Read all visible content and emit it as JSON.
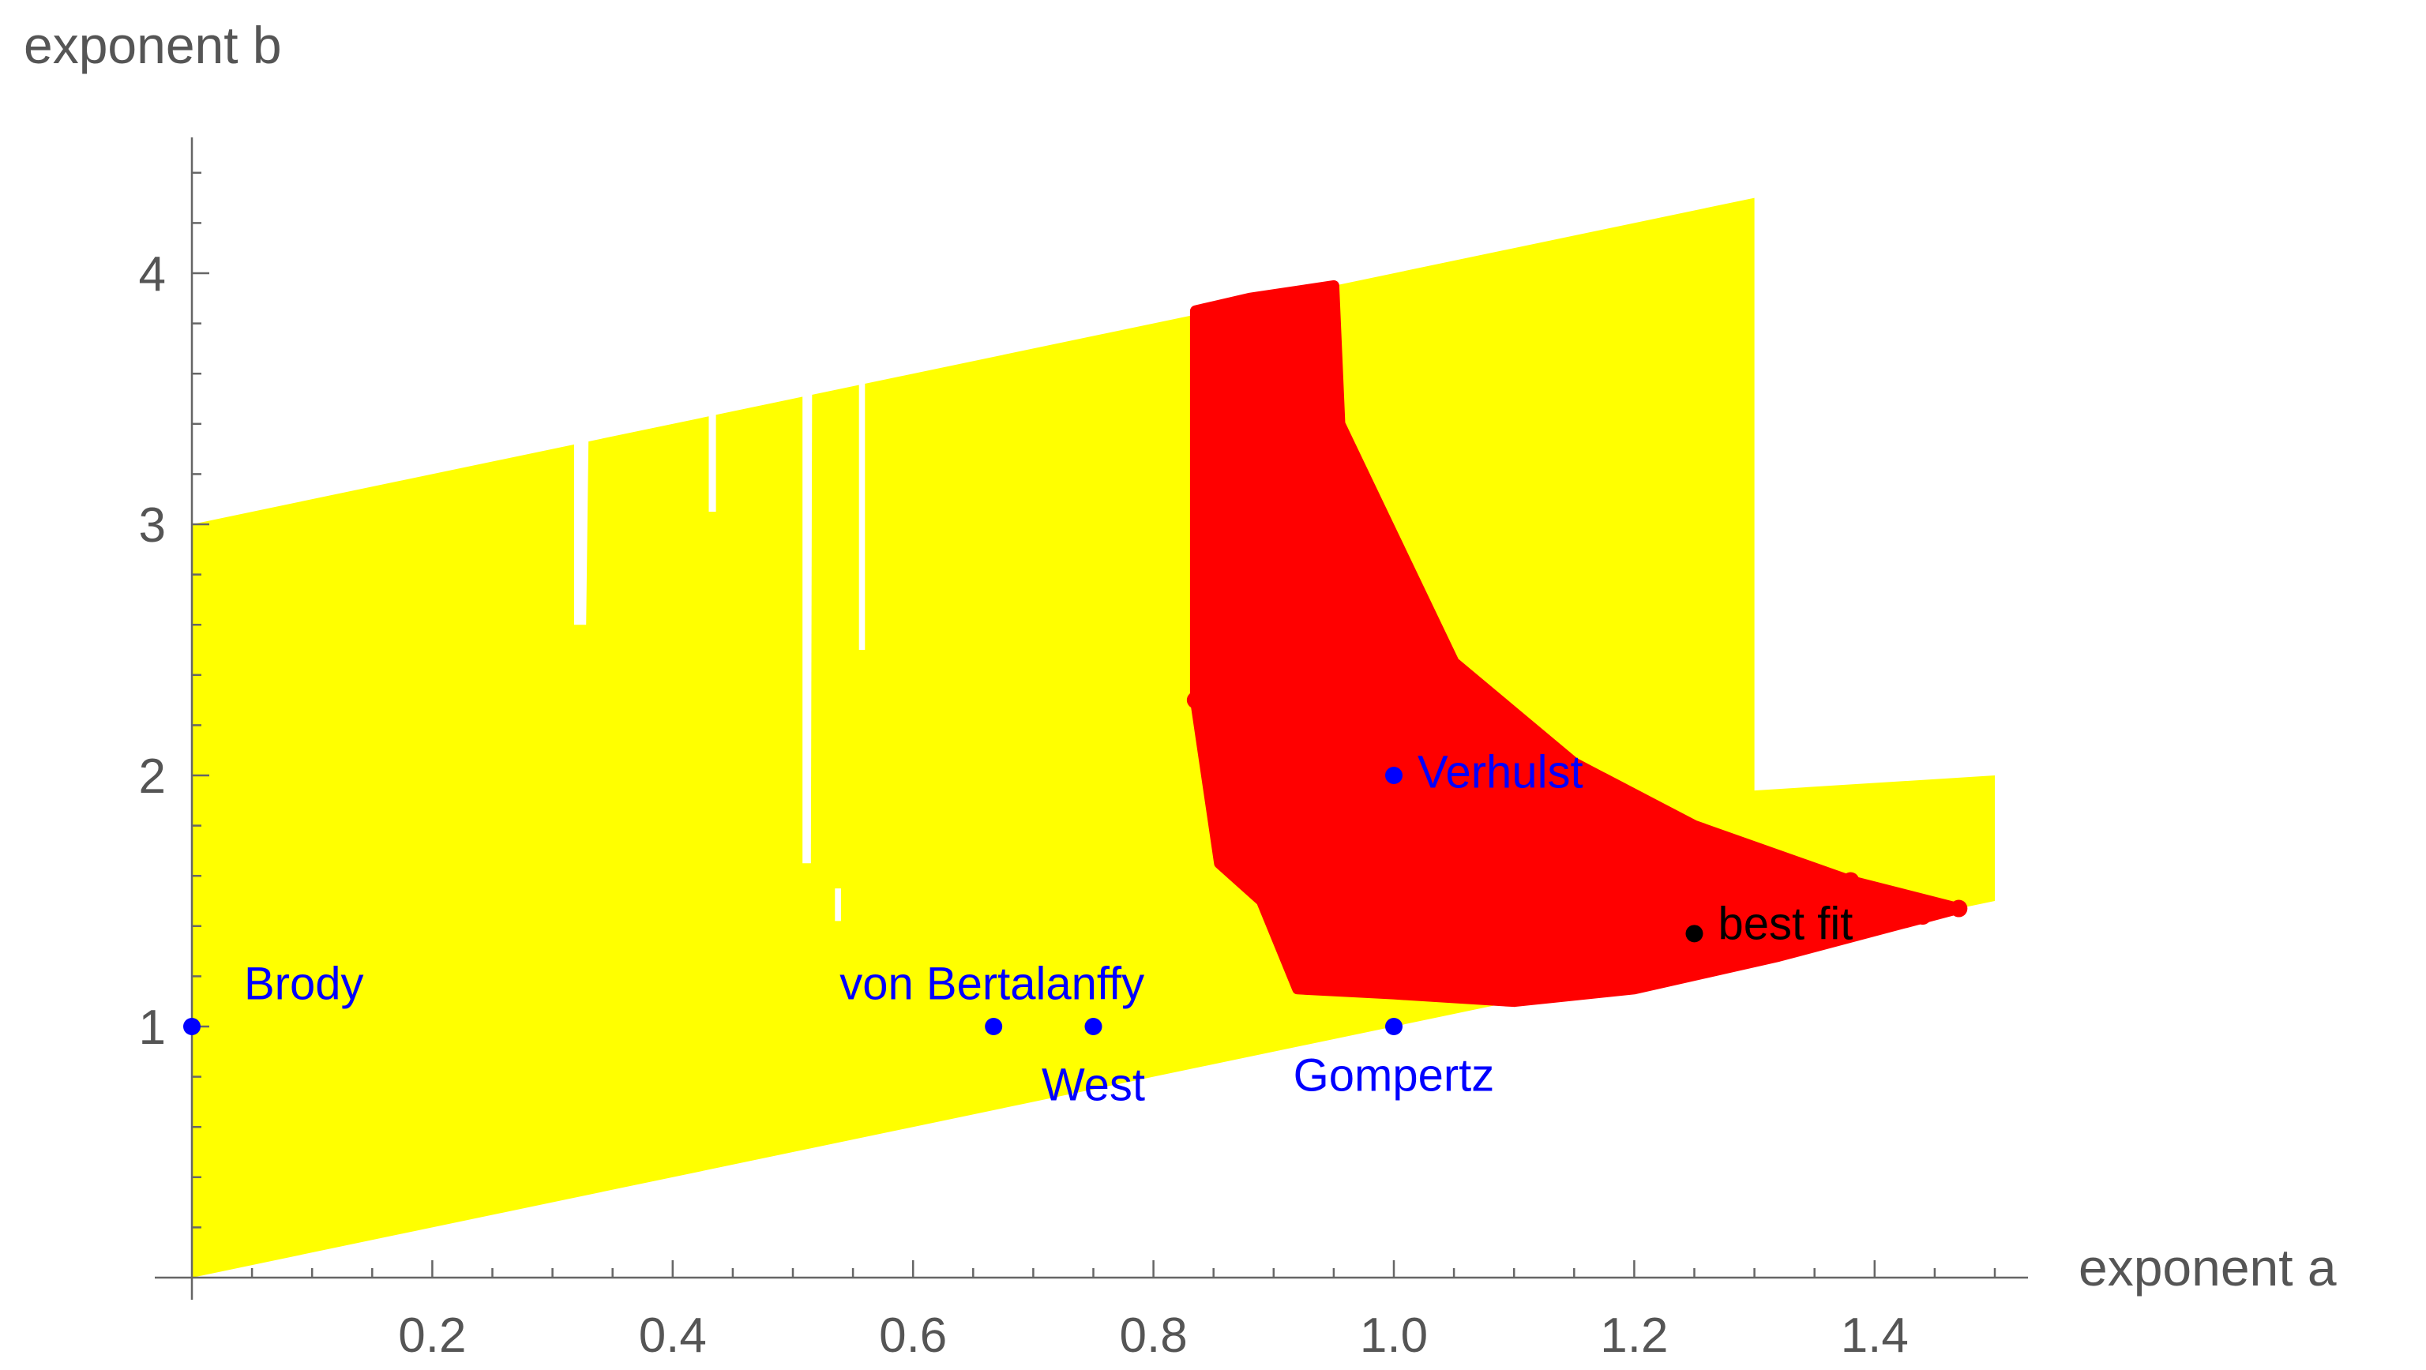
{
  "chart_data": {
    "type": "scatter",
    "xlabel": "exponent a",
    "ylabel": "exponent b",
    "xlim": [
      0,
      1.53
    ],
    "ylim": [
      0,
      4.5
    ],
    "x_ticks": [
      "0.2",
      "0.4",
      "0.6",
      "0.8",
      "1.0",
      "1.2",
      "1.4"
    ],
    "y_ticks": [
      "1",
      "2",
      "3",
      "4"
    ],
    "grid": false,
    "colors": {
      "feasible": "#ffff00",
      "good_fit": "#ff0000",
      "models": "#0000ff",
      "best_fit": "#000000",
      "axis": "#666666",
      "text": "#555555"
    },
    "regions": [
      {
        "color": "#ffff00",
        "polygon": [
          [
            0,
            0
          ],
          [
            1.5,
            1.5
          ],
          [
            1.5,
            2.0
          ],
          [
            1.3,
            1.94
          ],
          [
            1.3,
            4.3
          ],
          [
            0,
            3.0
          ]
        ]
      },
      {
        "color": "#ffffff",
        "polygon": [
          [
            0.318,
            2.6
          ],
          [
            0.328,
            2.6
          ],
          [
            0.33,
            3.36
          ],
          [
            0.318,
            3.38
          ]
        ]
      },
      {
        "color": "#ffffff",
        "polygon": [
          [
            0.43,
            3.05
          ],
          [
            0.436,
            3.05
          ],
          [
            0.436,
            3.5
          ],
          [
            0.43,
            3.5
          ]
        ]
      },
      {
        "color": "#ffffff",
        "polygon": [
          [
            0.508,
            1.65
          ],
          [
            0.515,
            1.65
          ],
          [
            0.516,
            3.6
          ],
          [
            0.508,
            3.6
          ]
        ]
      },
      {
        "color": "#ffffff",
        "polygon": [
          [
            0.555,
            2.5
          ],
          [
            0.56,
            2.5
          ],
          [
            0.56,
            3.6
          ],
          [
            0.555,
            3.6
          ]
        ]
      },
      {
        "color": "#ffffff",
        "polygon": [
          [
            0.535,
            1.42
          ],
          [
            0.54,
            1.42
          ],
          [
            0.54,
            1.55
          ],
          [
            0.535,
            1.55
          ]
        ]
      }
    ],
    "good_fit_boundary": [
      [
        0.835,
        3.85
      ],
      [
        0.88,
        3.9
      ],
      [
        0.95,
        3.95
      ],
      [
        0.955,
        3.4
      ],
      [
        1.0,
        2.95
      ],
      [
        1.05,
        2.45
      ],
      [
        1.15,
        2.05
      ],
      [
        1.25,
        1.8
      ],
      [
        1.38,
        1.58
      ],
      [
        1.47,
        1.47
      ],
      [
        1.32,
        1.28
      ],
      [
        1.2,
        1.15
      ],
      [
        1.1,
        1.1
      ],
      [
        1.0,
        1.13
      ],
      [
        0.92,
        1.15
      ],
      [
        0.89,
        1.5
      ],
      [
        0.855,
        1.65
      ],
      [
        0.835,
        2.3
      ]
    ],
    "good_fit_points": [
      [
        1.47,
        1.47
      ],
      [
        1.44,
        1.44
      ],
      [
        1.41,
        1.42
      ],
      [
        1.38,
        1.58
      ],
      [
        1.35,
        1.55
      ],
      [
        1.32,
        1.52
      ],
      [
        1.3,
        1.38
      ],
      [
        1.26,
        1.33
      ],
      [
        1.23,
        1.27
      ],
      [
        1.2,
        1.23
      ],
      [
        1.18,
        1.2
      ],
      [
        1.15,
        1.18
      ],
      [
        1.1,
        1.13
      ],
      [
        1.0,
        1.2
      ],
      [
        0.9,
        1.98
      ],
      [
        0.86,
        2.0
      ],
      [
        0.835,
        2.3
      ],
      [
        0.84,
        2.6
      ],
      [
        0.842,
        3.84
      ],
      [
        0.85,
        3.5
      ]
    ],
    "series": [
      {
        "name": "Brody",
        "x": [
          0.0
        ],
        "y": [
          1.0
        ]
      },
      {
        "name": "von Bertalanffy",
        "x": [
          0.667
        ],
        "y": [
          1.0
        ]
      },
      {
        "name": "West",
        "x": [
          0.75
        ],
        "y": [
          1.0
        ]
      },
      {
        "name": "Gompertz",
        "x": [
          1.0
        ],
        "y": [
          1.0
        ]
      },
      {
        "name": "Verhulst",
        "x": [
          1.0
        ],
        "y": [
          2.0
        ]
      },
      {
        "name": "best fit",
        "x": [
          1.25
        ],
        "y": [
          1.37
        ]
      }
    ]
  }
}
